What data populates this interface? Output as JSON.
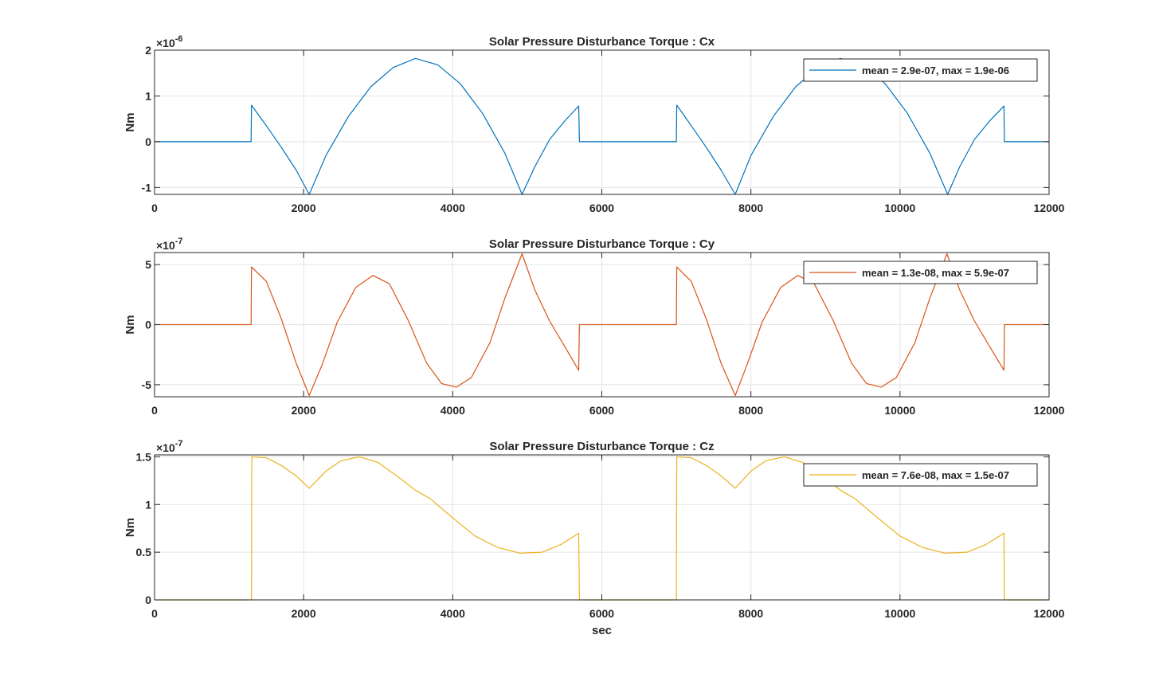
{
  "chart_data": [
    {
      "type": "line",
      "title": "Solar Pressure Disturbance Torque : Cx",
      "ylabel": "Nm",
      "xlabel": "",
      "exponent_base": "×10",
      "exponent_power": "-6",
      "xlim": [
        0,
        12000
      ],
      "ylim": [
        -1.15,
        2
      ],
      "yticks": [
        -1,
        0,
        1,
        2
      ],
      "ytick_labels": [
        "-1",
        "0",
        "1",
        "2"
      ],
      "xticks": [
        0,
        2000,
        4000,
        6000,
        8000,
        10000,
        12000
      ],
      "xtick_labels": [
        "0",
        "2000",
        "4000",
        "6000",
        "8000",
        "10000",
        "12000"
      ],
      "grid": true,
      "legend_position": "top-right",
      "color": "#0072BD",
      "series": [
        {
          "name": "mean = 2.9e-07, max = 1.9e-06",
          "x": [
            0,
            1295,
            1300,
            1500,
            1700,
            1900,
            2075,
            2300,
            2600,
            2900,
            3200,
            3500,
            3800,
            4100,
            4400,
            4700,
            4930,
            5100,
            5300,
            5500,
            5690,
            5700,
            7000,
            7005,
            7200,
            7400,
            7600,
            7790,
            8000,
            8300,
            8600,
            8900,
            9200,
            9500,
            9800,
            10100,
            10400,
            10640,
            10800,
            11000,
            11200,
            11395,
            11400,
            12000
          ],
          "y": [
            0,
            0,
            0.8,
            0.35,
            -0.12,
            -0.62,
            -1.15,
            -0.3,
            0.55,
            1.2,
            1.62,
            1.82,
            1.68,
            1.27,
            0.62,
            -0.25,
            -1.15,
            -0.55,
            0.05,
            0.45,
            0.78,
            0,
            0,
            0.8,
            0.35,
            -0.12,
            -0.62,
            -1.15,
            -0.3,
            0.55,
            1.2,
            1.62,
            1.82,
            1.68,
            1.27,
            0.62,
            -0.25,
            -1.15,
            -0.55,
            0.05,
            0.45,
            0.78,
            0,
            0
          ]
        }
      ]
    },
    {
      "type": "line",
      "title": "Solar Pressure Disturbance Torque : Cy",
      "ylabel": "Nm",
      "xlabel": "",
      "exponent_base": "×10",
      "exponent_power": "-7",
      "xlim": [
        0,
        12000
      ],
      "ylim": [
        -6,
        6
      ],
      "yticks": [
        -5,
        0,
        5
      ],
      "ytick_labels": [
        "-5",
        "0",
        "5"
      ],
      "xticks": [
        0,
        2000,
        4000,
        6000,
        8000,
        10000,
        12000
      ],
      "xtick_labels": [
        "0",
        "2000",
        "4000",
        "6000",
        "8000",
        "10000",
        "12000"
      ],
      "grid": true,
      "legend_position": "top-right",
      "color": "#D95319",
      "series": [
        {
          "name": "mean = 1.3e-08, max = 5.9e-07",
          "x": [
            0,
            1295,
            1300,
            1500,
            1700,
            1900,
            2075,
            2250,
            2450,
            2700,
            2930,
            3150,
            3400,
            3650,
            3850,
            4050,
            4250,
            4500,
            4700,
            4930,
            5100,
            5300,
            5500,
            5690,
            5700,
            7000,
            7005,
            7200,
            7400,
            7600,
            7790,
            7950,
            8150,
            8400,
            8630,
            8850,
            9100,
            9350,
            9550,
            9750,
            9950,
            10200,
            10400,
            10630,
            10800,
            11000,
            11200,
            11395,
            11400,
            12000
          ],
          "y": [
            0,
            0,
            4.8,
            3.6,
            0.5,
            -3.2,
            -5.9,
            -3.3,
            0.2,
            3.1,
            4.1,
            3.4,
            0.4,
            -3.2,
            -4.9,
            -5.2,
            -4.4,
            -1.5,
            2.2,
            5.9,
            2.9,
            0.3,
            -1.8,
            -3.8,
            0,
            0,
            4.8,
            3.6,
            0.5,
            -3.2,
            -5.9,
            -3.3,
            0.2,
            3.1,
            4.1,
            3.4,
            0.4,
            -3.2,
            -4.9,
            -5.2,
            -4.4,
            -1.5,
            2.2,
            5.9,
            2.9,
            0.3,
            -1.8,
            -3.8,
            0,
            0
          ]
        }
      ]
    },
    {
      "type": "line",
      "title": "Solar Pressure Disturbance Torque : Cz",
      "ylabel": "Nm",
      "xlabel": "sec",
      "exponent_base": "×10",
      "exponent_power": "-7",
      "xlim": [
        0,
        12000
      ],
      "ylim": [
        0,
        1.52
      ],
      "yticks": [
        0,
        0.5,
        1,
        1.5
      ],
      "ytick_labels": [
        "0",
        "0.5",
        "1",
        "1.5"
      ],
      "xticks": [
        0,
        2000,
        4000,
        6000,
        8000,
        10000,
        12000
      ],
      "xtick_labels": [
        "0",
        "2000",
        "4000",
        "6000",
        "8000",
        "10000",
        "12000"
      ],
      "grid": true,
      "legend_position": "top-right",
      "color": "#EDB120",
      "series": [
        {
          "name": "mean = 7.6e-08, max = 1.5e-07",
          "x": [
            0,
            1300,
            1305,
            1500,
            1700,
            1900,
            2075,
            2300,
            2500,
            2750,
            3000,
            3300,
            3500,
            3700,
            4000,
            4300,
            4600,
            4900,
            5200,
            5450,
            5690,
            5700,
            7000,
            7005,
            7200,
            7400,
            7600,
            7790,
            8000,
            8200,
            8450,
            8700,
            9000,
            9200,
            9400,
            9700,
            10000,
            10300,
            10600,
            10900,
            11150,
            11395,
            11400,
            12000
          ],
          "y": [
            0,
            0,
            1.5,
            1.49,
            1.41,
            1.3,
            1.17,
            1.35,
            1.46,
            1.5,
            1.44,
            1.27,
            1.15,
            1.06,
            0.86,
            0.67,
            0.55,
            0.49,
            0.5,
            0.58,
            0.7,
            0,
            0,
            1.5,
            1.49,
            1.41,
            1.3,
            1.17,
            1.35,
            1.46,
            1.5,
            1.44,
            1.27,
            1.15,
            1.06,
            0.86,
            0.67,
            0.55,
            0.49,
            0.5,
            0.58,
            0.7,
            0,
            0
          ]
        }
      ]
    }
  ]
}
